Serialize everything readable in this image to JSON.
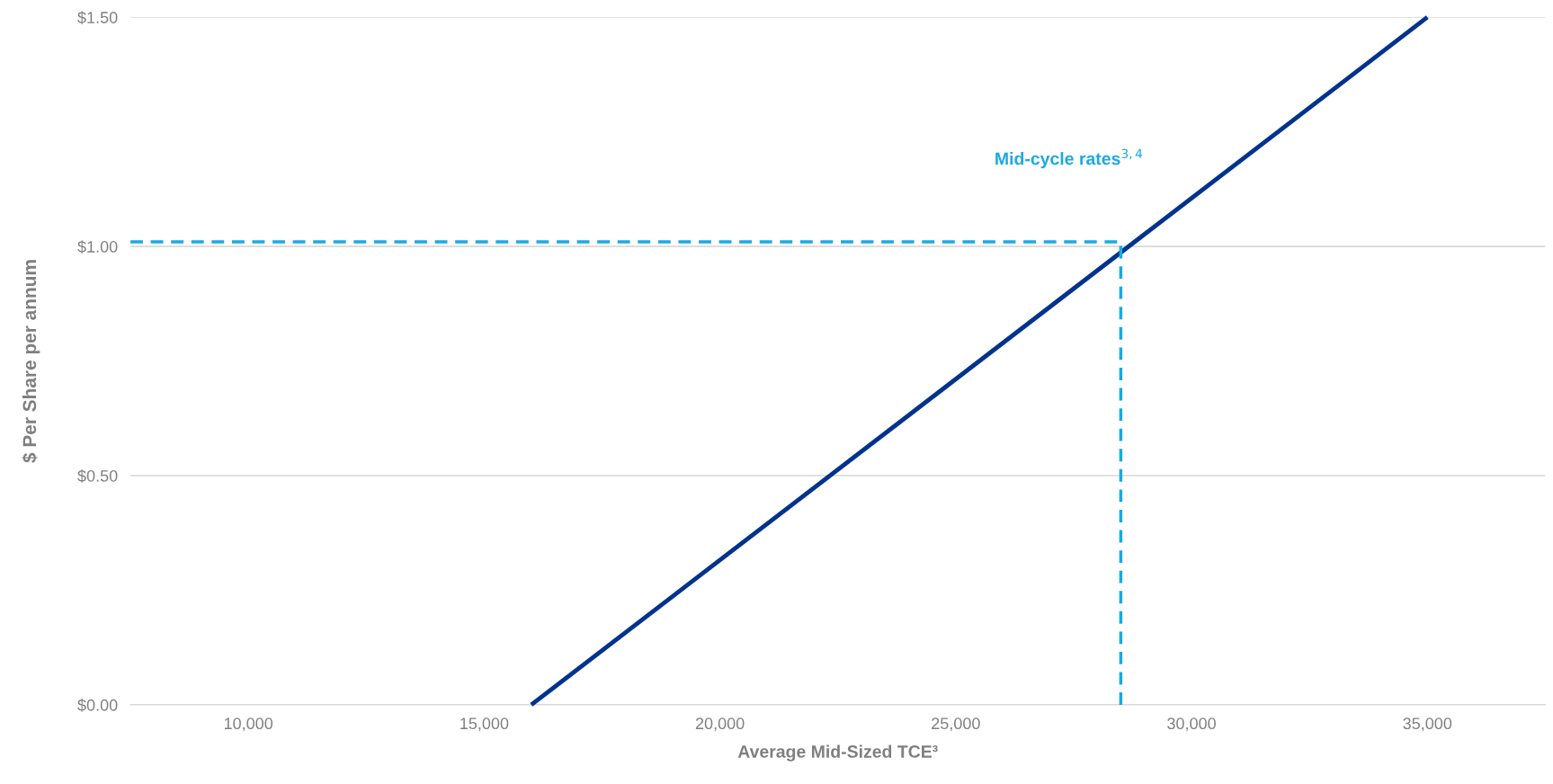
{
  "chart_data": {
    "type": "line",
    "xlabel": "Average Mid-Sized TCE³",
    "ylabel": "$ Per Share per annum",
    "xlim": [
      7500,
      37500
    ],
    "xticks": [
      {
        "value": 10000,
        "label": "10,000"
      },
      {
        "value": 15000,
        "label": "15,000"
      },
      {
        "value": 20000,
        "label": "20,000"
      },
      {
        "value": 25000,
        "label": "25,000"
      },
      {
        "value": 30000,
        "label": "30,000"
      },
      {
        "value": 35000,
        "label": "35,000"
      }
    ],
    "ylim": [
      0,
      1.5
    ],
    "yticks": [
      {
        "value": 0,
        "label": "$0.00"
      },
      {
        "value": 0.5,
        "label": "$0.50"
      },
      {
        "value": 1.0,
        "label": "$1.00"
      },
      {
        "value": 1.5,
        "label": "$1.50"
      }
    ],
    "grid": "y",
    "marker": "none",
    "line_style": "solid",
    "series": [
      {
        "x": [
          16000,
          35000
        ],
        "values": [
          0,
          1.5
        ],
        "color": "#00338d"
      },
      {
        "x": [
          7500,
          28500,
          28500
        ],
        "values": [
          1.01,
          1.01,
          0
        ],
        "color": "#1ca9e1",
        "line_style": "dashed"
      }
    ],
    "annotations": [
      "Mid-cycle rates$^{3,4}$"
    ]
  }
}
